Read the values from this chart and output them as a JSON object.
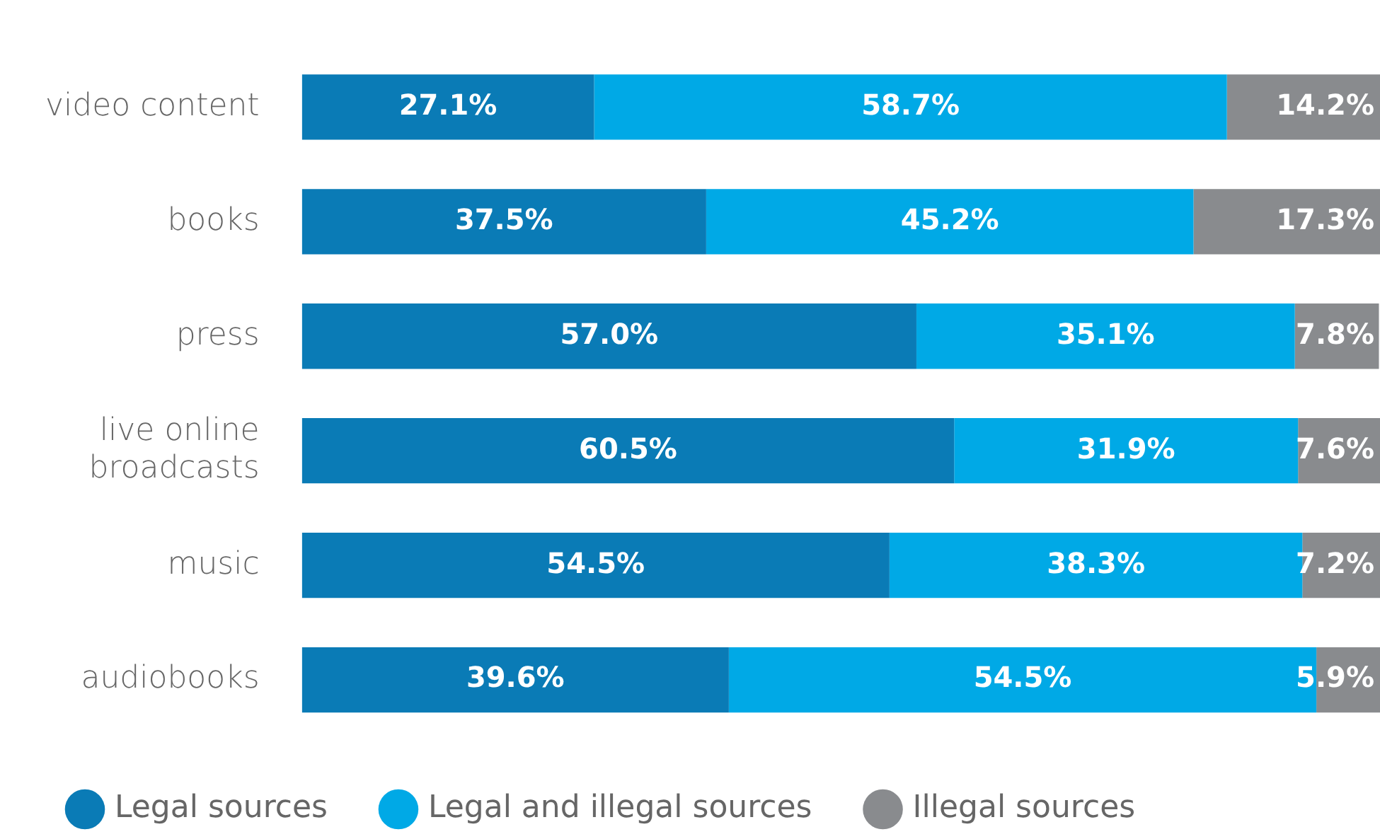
{
  "chart_data": {
    "type": "bar",
    "orientation": "horizontal",
    "stacked": true,
    "categories": [
      "video content",
      "books",
      "press",
      "live online broadcasts",
      "music",
      "audiobooks"
    ],
    "series": [
      {
        "name": "Legal sources",
        "color": "#0a7bb6",
        "values": [
          27.1,
          37.5,
          57.0,
          60.5,
          54.5,
          39.6
        ],
        "value_labels": [
          "27.1%",
          "37.5%",
          "57.0%",
          "60.5%",
          "54.5%",
          "39.6%"
        ]
      },
      {
        "name": "Legal and illegal sources",
        "color": "#00a9e6",
        "values": [
          58.7,
          45.2,
          35.1,
          31.9,
          38.3,
          54.5
        ],
        "value_labels": [
          "58.7%",
          "45.2%",
          "35.1%",
          "31.9%",
          "38.3%",
          "54.5%"
        ]
      },
      {
        "name": "Illegal sources",
        "color": "#898b8e",
        "values": [
          14.2,
          17.3,
          7.8,
          7.6,
          7.2,
          5.9
        ],
        "value_labels": [
          "14.2%",
          "17.3%",
          "7.8%",
          "7.6%",
          "7.2%",
          "5.9%"
        ]
      }
    ],
    "xlim": [
      0,
      100
    ],
    "tick_labels": "y",
    "grid": false,
    "legend": "bottom left"
  }
}
